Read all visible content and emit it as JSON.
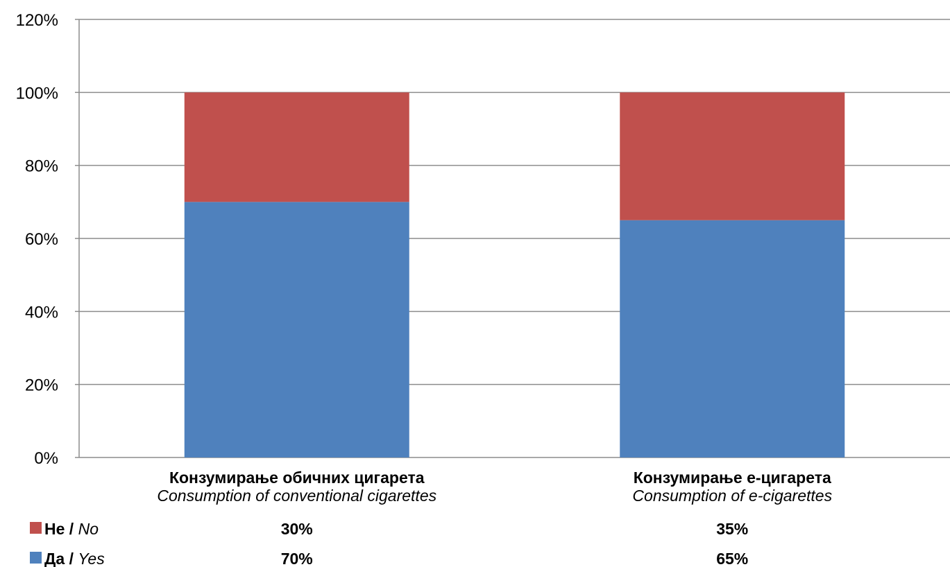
{
  "chart_data": {
    "type": "bar",
    "stacked": true,
    "categories": [
      {
        "main": "Конзумирање обичних цигарета",
        "sub": "Consumption of conventional cigarettes"
      },
      {
        "main": "Конзумирање е-цигарета",
        "sub": "Consumption of e-cigarettes"
      }
    ],
    "series": [
      {
        "name_bold": "Да",
        "sep": " / ",
        "name_italic": "Yes",
        "color": "#4f81bd",
        "values": [
          70,
          65
        ],
        "labels": [
          "70%",
          "65%"
        ]
      },
      {
        "name_bold": "Не",
        "sep": " / ",
        "name_italic": "No",
        "color": "#c0504d",
        "values": [
          30,
          35
        ],
        "labels": [
          "30%",
          "35%"
        ]
      }
    ],
    "ylim": [
      0,
      120
    ],
    "yticks": [
      0,
      20,
      40,
      60,
      80,
      100,
      120
    ],
    "ytick_labels": [
      "0%",
      "20%",
      "40%",
      "60%",
      "80%",
      "100%",
      "120%"
    ],
    "grid": true,
    "legend_placement": "bottom data table",
    "legend_order": [
      1,
      0
    ]
  }
}
